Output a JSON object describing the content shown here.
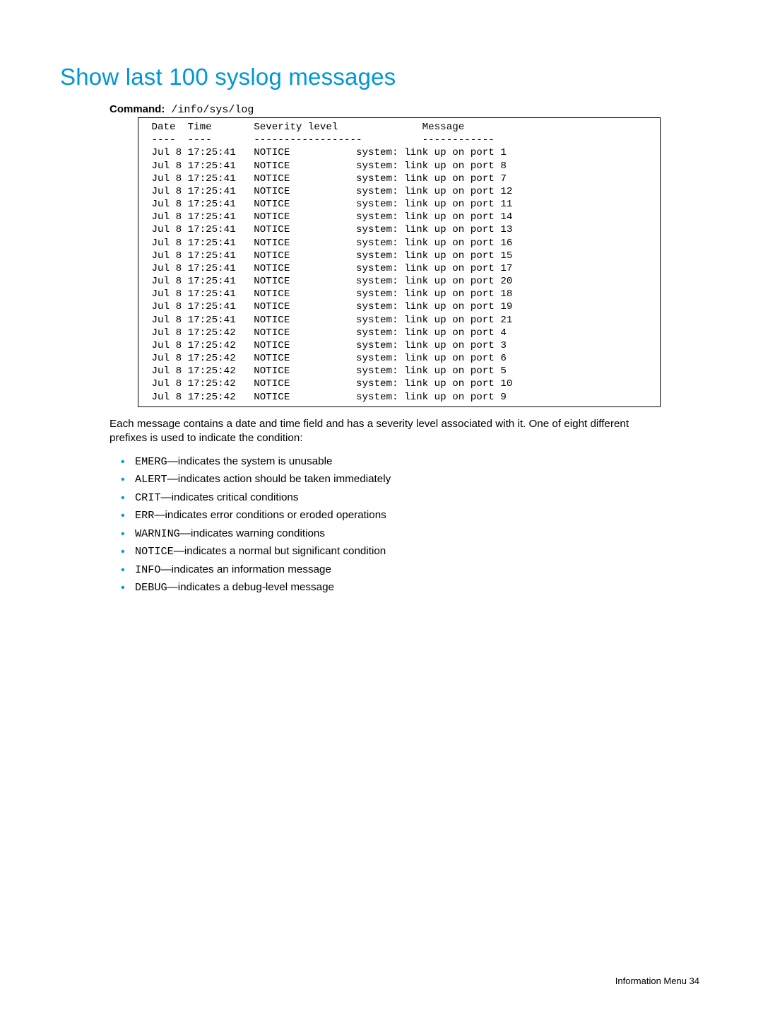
{
  "title": "Show last 100 syslog messages",
  "command_label": "Command:",
  "command_text": " /info/sys/log",
  "log_header": " Date  Time       Severity level              Message\n ----  ----       ------------------          ------------",
  "log_rows": [
    " Jul 8 17:25:41   NOTICE           system: link up on port 1",
    " Jul 8 17:25:41   NOTICE           system: link up on port 8",
    " Jul 8 17:25:41   NOTICE           system: link up on port 7",
    " Jul 8 17:25:41   NOTICE           system: link up on port 12",
    " Jul 8 17:25:41   NOTICE           system: link up on port 11",
    " Jul 8 17:25:41   NOTICE           system: link up on port 14",
    " Jul 8 17:25:41   NOTICE           system: link up on port 13",
    " Jul 8 17:25:41   NOTICE           system: link up on port 16",
    " Jul 8 17:25:41   NOTICE           system: link up on port 15",
    " Jul 8 17:25:41   NOTICE           system: link up on port 17",
    " Jul 8 17:25:41   NOTICE           system: link up on port 20",
    " Jul 8 17:25:41   NOTICE           system: link up on port 18",
    " Jul 8 17:25:41   NOTICE           system: link up on port 19",
    " Jul 8 17:25:41   NOTICE           system: link up on port 21",
    " Jul 8 17:25:42   NOTICE           system: link up on port 4",
    " Jul 8 17:25:42   NOTICE           system: link up on port 3",
    " Jul 8 17:25:42   NOTICE           system: link up on port 6",
    " Jul 8 17:25:42   NOTICE           system: link up on port 5",
    " Jul 8 17:25:42   NOTICE           system: link up on port 10",
    " Jul 8 17:25:42   NOTICE           system: link up on port 9"
  ],
  "intro_text": "Each message contains a date and time field and has a severity level associated with it. One of eight different prefixes is used to indicate the condition:",
  "bullets": [
    {
      "code": "EMERG",
      "desc": "—indicates the system is unusable"
    },
    {
      "code": "ALERT",
      "desc": "—indicates action should be taken immediately"
    },
    {
      "code": "CRIT",
      "desc": "—indicates critical conditions"
    },
    {
      "code": "ERR",
      "desc": "—indicates error conditions or eroded operations"
    },
    {
      "code": "WARNING",
      "desc": "—indicates warning conditions"
    },
    {
      "code": "NOTICE",
      "desc": "—indicates a normal but significant condition"
    },
    {
      "code": "INFO",
      "desc": "—indicates an information message"
    },
    {
      "code": "DEBUG",
      "desc": "—indicates a debug-level message"
    }
  ],
  "footer_text": "Information Menu   34",
  "colors": {
    "accent": "#0096d6",
    "text": "#000000",
    "background": "#ffffff"
  }
}
